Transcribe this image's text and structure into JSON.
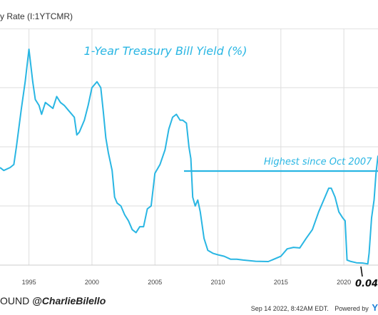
{
  "header": {
    "title": "y Rate (I:1YTCMR)"
  },
  "footer": {
    "source": "OUND",
    "handle": "@CharlieBilello",
    "timestamp": "Sep 14 2022, 8:42AM EDT.",
    "powered": "Powered by",
    "brand": "Y"
  },
  "annotations": {
    "highest": "Highest since Oct 2007",
    "low": "0.04"
  },
  "colors": {
    "line": "#29b6e3",
    "annotation": "#29b6e3"
  },
  "chart_data": {
    "type": "line",
    "title": "1-Year Treasury Bill Yield (%)",
    "xlabel": "",
    "ylabel": "",
    "x_ticks": [
      "1995",
      "2000",
      "2005",
      "2010",
      "2015",
      "2020"
    ],
    "xlim": [
      1992.7,
      2022.71
    ],
    "ylim": [
      0,
      8
    ],
    "grid": true,
    "series": [
      {
        "x": [
          1992.7,
          1993.0,
          1993.5,
          1993.8,
          1994.0,
          1994.4,
          1994.7,
          1995.0,
          1995.3,
          1995.5,
          1995.8,
          1996.0,
          1996.3,
          1996.6,
          1996.9,
          1997.2,
          1997.5,
          1997.8,
          1998.2,
          1998.6,
          1998.8,
          1999.0,
          1999.4,
          1999.7,
          2000.0,
          2000.4,
          2000.7,
          2000.9,
          2001.1,
          2001.3,
          2001.6,
          2001.8,
          2002.0,
          2002.3,
          2002.6,
          2002.9,
          2003.2,
          2003.5,
          2003.8,
          2004.1,
          2004.4,
          2004.7,
          2005.0,
          2005.4,
          2005.8,
          2006.1,
          2006.4,
          2006.7,
          2007.0,
          2007.2,
          2007.5,
          2007.7,
          2007.85,
          2008.0,
          2008.2,
          2008.4,
          2008.6,
          2008.9,
          2009.2,
          2009.6,
          2010.0,
          2010.5,
          2011.0,
          2011.5,
          2012.0,
          2013.0,
          2014.0,
          2015.0,
          2015.5,
          2016.0,
          2016.5,
          2017.0,
          2017.5,
          2018.0,
          2018.5,
          2018.8,
          2019.0,
          2019.3,
          2019.6,
          2019.9,
          2020.1,
          2020.25,
          2020.5,
          2021.0,
          2021.5,
          2021.9,
          2022.0,
          2022.2,
          2022.4,
          2022.55,
          2022.71
        ],
        "y": [
          3.3,
          3.2,
          3.3,
          3.4,
          4.0,
          5.3,
          6.2,
          7.3,
          6.2,
          5.6,
          5.4,
          5.1,
          5.5,
          5.4,
          5.3,
          5.7,
          5.5,
          5.4,
          5.2,
          5.0,
          4.4,
          4.5,
          4.9,
          5.4,
          6.0,
          6.2,
          6.0,
          5.2,
          4.3,
          3.8,
          3.2,
          2.3,
          2.1,
          2.0,
          1.7,
          1.5,
          1.2,
          1.1,
          1.3,
          1.3,
          1.9,
          2.0,
          3.1,
          3.4,
          3.9,
          4.6,
          5.0,
          5.1,
          4.9,
          4.9,
          4.8,
          4.0,
          3.6,
          2.3,
          2.0,
          2.2,
          1.8,
          0.9,
          0.5,
          0.4,
          0.35,
          0.3,
          0.2,
          0.2,
          0.17,
          0.13,
          0.12,
          0.3,
          0.55,
          0.6,
          0.58,
          0.9,
          1.2,
          1.8,
          2.3,
          2.6,
          2.6,
          2.3,
          1.8,
          1.6,
          1.5,
          0.17,
          0.13,
          0.08,
          0.07,
          0.04,
          0.4,
          1.6,
          2.2,
          3.1,
          3.7
        ]
      }
    ]
  }
}
